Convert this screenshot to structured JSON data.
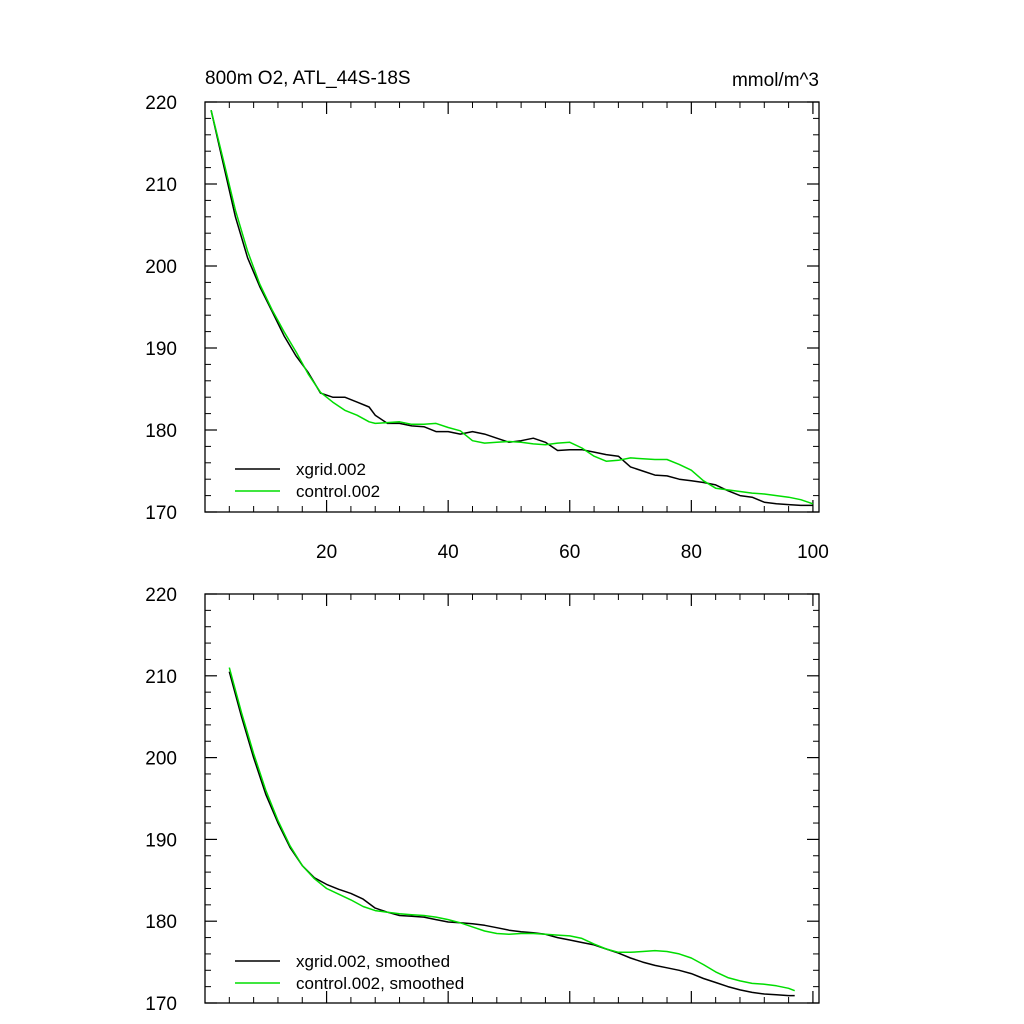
{
  "chart_data": [
    {
      "type": "line",
      "title": "800m O2, ATL_44S-18S",
      "units_label": "mmol/m^3",
      "xlim": [
        0,
        101
      ],
      "ylim": [
        170,
        220
      ],
      "y_ticks": [
        170,
        180,
        190,
        200,
        210,
        220
      ],
      "y_tick_labels": [
        "170",
        "180",
        "190",
        "200",
        "210",
        "220"
      ],
      "x_ticks": [
        20,
        40,
        60,
        80,
        100
      ],
      "x_tick_labels": [
        "20",
        "40",
        "60",
        "80",
        "100"
      ],
      "legend": "bottom-left",
      "grid": false,
      "series": [
        {
          "name": "xgrid.002",
          "color": "#000000",
          "x": [
            1,
            3,
            5,
            7,
            9,
            11,
            13,
            15,
            17,
            19,
            21,
            23,
            25,
            27,
            28,
            30,
            32,
            34,
            36,
            38,
            40,
            42,
            44,
            46,
            48,
            50,
            52,
            54,
            56,
            58,
            60,
            62,
            64,
            66,
            68,
            70,
            72,
            74,
            76,
            78,
            80,
            82,
            84,
            86,
            88,
            90,
            92,
            94,
            96,
            98,
            100
          ],
          "values": [
            219,
            212.5,
            206,
            201,
            197.5,
            194.5,
            191.5,
            189,
            187,
            184.5,
            184,
            184,
            183.4,
            182.8,
            181.8,
            180.8,
            180.8,
            180.5,
            180.4,
            179.8,
            179.8,
            179.5,
            179.8,
            179.5,
            179,
            178.5,
            178.7,
            179,
            178.5,
            177.5,
            177.6,
            177.6,
            177.3,
            177,
            176.8,
            175.5,
            175.0,
            174.5,
            174.4,
            174,
            173.8,
            173.6,
            173.3,
            172.6,
            172,
            171.8,
            171.2,
            171,
            170.9,
            170.8,
            170.8
          ]
        },
        {
          "name": "control.002",
          "color": "#00dd00",
          "x": [
            1,
            3,
            5,
            7,
            9,
            11,
            13,
            15,
            17,
            19,
            21,
            23,
            25,
            27,
            28,
            30,
            32,
            34,
            36,
            38,
            40,
            42,
            44,
            46,
            48,
            50,
            52,
            54,
            56,
            58,
            60,
            62,
            64,
            66,
            68,
            70,
            72,
            74,
            76,
            78,
            80,
            82,
            84,
            86,
            88,
            90,
            92,
            94,
            96,
            98,
            100
          ],
          "values": [
            219,
            213,
            206.8,
            201.8,
            197.8,
            194.7,
            192,
            189.5,
            186.8,
            184.6,
            183.4,
            182.4,
            181.8,
            181,
            180.8,
            180.9,
            181,
            180.7,
            180.7,
            180.8,
            180.3,
            179.9,
            178.7,
            178.4,
            178.5,
            178.6,
            178.5,
            178.3,
            178.2,
            178.4,
            178.5,
            177.8,
            176.8,
            176.2,
            176.3,
            176.6,
            176.5,
            176.4,
            176.4,
            175.8,
            175.1,
            173.8,
            172.9,
            172.7,
            172.5,
            172.3,
            172.2,
            172,
            171.8,
            171.5,
            171
          ]
        }
      ]
    },
    {
      "type": "line",
      "xlim": [
        0,
        101
      ],
      "ylim": [
        170,
        220
      ],
      "y_ticks": [
        170,
        180,
        190,
        200,
        210,
        220
      ],
      "y_tick_labels": [
        "170",
        "180",
        "190",
        "200",
        "210",
        "220"
      ],
      "x_ticks": [
        20,
        40,
        60,
        80,
        100
      ],
      "legend": "bottom-left",
      "grid": false,
      "series": [
        {
          "name": "xgrid.002, smoothed",
          "color": "#000000",
          "x": [
            4,
            6,
            8,
            10,
            12,
            14,
            16,
            18,
            20,
            22,
            24,
            26,
            28,
            30,
            32,
            34,
            36,
            38,
            40,
            42,
            44,
            46,
            48,
            50,
            52,
            54,
            56,
            58,
            60,
            62,
            64,
            66,
            68,
            70,
            72,
            74,
            76,
            78,
            80,
            82,
            84,
            86,
            88,
            90,
            92,
            94,
            96,
            97
          ],
          "values": [
            210.5,
            205,
            200,
            195.5,
            192,
            189,
            186.8,
            185.3,
            184.5,
            183.9,
            183.4,
            182.7,
            181.6,
            181.1,
            180.7,
            180.6,
            180.5,
            180.2,
            179.9,
            179.8,
            179.7,
            179.5,
            179.2,
            178.9,
            178.7,
            178.6,
            178.4,
            178,
            177.7,
            177.4,
            177.1,
            176.6,
            176.1,
            175.5,
            175,
            174.6,
            174.3,
            174,
            173.6,
            173,
            172.5,
            172,
            171.6,
            171.3,
            171.1,
            171,
            170.9,
            170.9
          ]
        },
        {
          "name": "control.002, smoothed",
          "color": "#00dd00",
          "x": [
            4,
            6,
            8,
            10,
            12,
            14,
            16,
            18,
            20,
            22,
            24,
            26,
            28,
            30,
            32,
            34,
            36,
            38,
            40,
            42,
            44,
            46,
            48,
            50,
            52,
            54,
            56,
            58,
            60,
            62,
            64,
            66,
            68,
            70,
            72,
            74,
            76,
            78,
            80,
            82,
            84,
            86,
            88,
            90,
            92,
            94,
            96,
            97
          ],
          "values": [
            211,
            205.5,
            200.5,
            196,
            192.3,
            189.2,
            186.8,
            185.2,
            184,
            183.3,
            182.6,
            181.8,
            181.3,
            181.1,
            180.9,
            180.8,
            180.7,
            180.5,
            180.2,
            179.8,
            179.3,
            178.8,
            178.5,
            178.4,
            178.5,
            178.5,
            178.4,
            178.3,
            178.2,
            177.9,
            177.2,
            176.6,
            176.2,
            176.2,
            176.3,
            176.4,
            176.3,
            176,
            175.5,
            174.7,
            173.8,
            173.1,
            172.7,
            172.4,
            172.3,
            172.1,
            171.8,
            171.5
          ]
        }
      ]
    }
  ]
}
